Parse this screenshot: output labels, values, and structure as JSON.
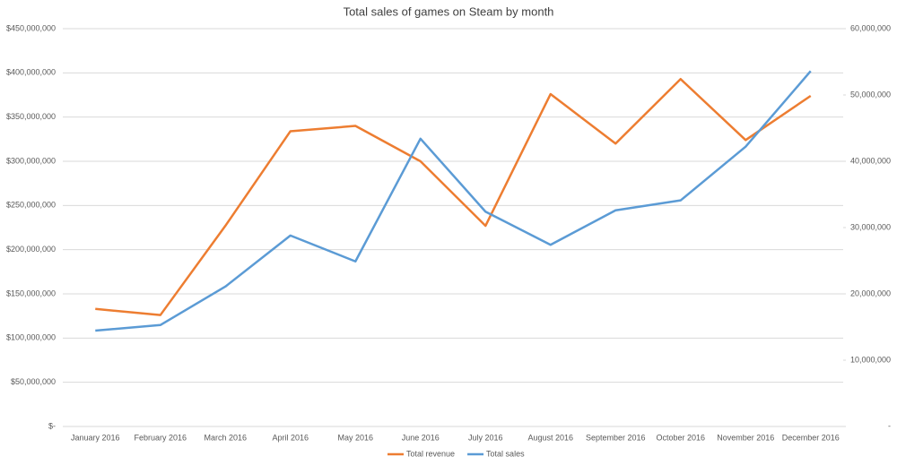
{
  "chart_data": {
    "type": "line",
    "title": "Total sales of games on Steam by month",
    "categories": [
      "January 2016",
      "February 2016",
      "March 2016",
      "April 2016",
      "May 2016",
      "June 2016",
      "July 2016",
      "August 2016",
      "September 2016",
      "October 2016",
      "November 2016",
      "December 2016"
    ],
    "series": [
      {
        "name": "Total revenue",
        "color": "#ED7D31",
        "values": [
          133000000,
          126000000,
          227000000,
          334000000,
          340000000,
          300000000,
          227000000,
          376000000,
          320000000,
          393000000,
          324000000,
          374000000
        ]
      },
      {
        "name": "Total sales",
        "color": "#5B9BD5",
        "axis": "y2",
        "values": [
          14460000,
          15300000,
          21100000,
          28800000,
          24900000,
          43400000,
          32400000,
          27400000,
          32600000,
          34100000,
          42200000,
          53600000
        ]
      }
    ],
    "ylim": [
      0,
      450000000
    ],
    "yticks": [
      {
        "value": 0,
        "label": "$-"
      },
      {
        "value": 50000000,
        "label": "$50,000,000"
      },
      {
        "value": 100000000,
        "label": "$100,000,000"
      },
      {
        "value": 150000000,
        "label": "$150,000,000"
      },
      {
        "value": 200000000,
        "label": "$200,000,000"
      },
      {
        "value": 250000000,
        "label": "$250,000,000"
      },
      {
        "value": 300000000,
        "label": "$300,000,000"
      },
      {
        "value": 350000000,
        "label": "$350,000,000"
      },
      {
        "value": 400000000,
        "label": "$400,000,000"
      },
      {
        "value": 450000000,
        "label": "$450,000,000"
      }
    ],
    "y2lim": [
      0,
      60000000
    ],
    "y2ticks": [
      {
        "value": 0,
        "label": "-"
      },
      {
        "value": 10000000,
        "label": "10,000,000"
      },
      {
        "value": 20000000,
        "label": "20,000,000"
      },
      {
        "value": 30000000,
        "label": "30,000,000"
      },
      {
        "value": 40000000,
        "label": "40,000,000"
      },
      {
        "value": 50000000,
        "label": "50,000,000"
      },
      {
        "value": 60000000,
        "label": "60,000,000"
      }
    ],
    "grid": true,
    "legend": "bottom"
  }
}
